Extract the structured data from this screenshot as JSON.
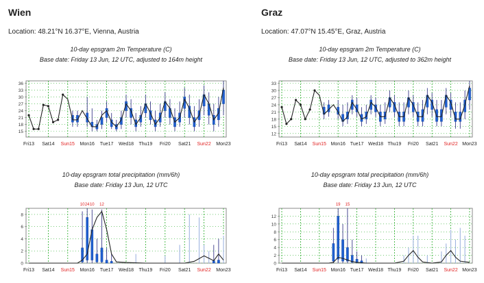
{
  "panels": [
    {
      "city": "Wien",
      "location": "Location: 48.21°N 16.37°E, Vienna, Austria",
      "temp_title": "10-day epsgram 2m Temperature (C)",
      "temp_subtitle": "Base date: Friday 13 Jun, 12 UTC, adjusted to 164m height",
      "precip_title": "10-day epsgram total precipitation (mm/6h)",
      "precip_subtitle": "Base date: Friday 13 Jun, 12 UTC"
    },
    {
      "city": "Graz",
      "location": "Location: 47.07°N 15.45°E, Graz, Austria",
      "temp_title": "10-day epsgram 2m Temperature (C)",
      "temp_subtitle": "Base date: Friday 13 Jun, 12 UTC, adjusted to 362m height",
      "precip_title": "10-day epsgram total precipitation (mm/6h)",
      "precip_subtitle": "Base date: Friday 13 Jun, 12 UTC"
    }
  ],
  "colors": {
    "axis": "#888888",
    "gridline": "#22aa22",
    "box": "#1f5fd0",
    "whisker": "#3a3a8a",
    "ens_line": "#222222",
    "weekend_label": "#e02020",
    "weekday_label": "#222222",
    "overflow_label": "#e02020"
  },
  "chart_data": [
    {
      "type": "boxplot-line",
      "title": "10-day epsgram 2m Temperature (C)",
      "location": "Wien",
      "x_ticks": [
        "Fri13",
        "Sat14",
        "Sun15",
        "Mon16",
        "Tue17",
        "Wed18",
        "Thu19",
        "Fri20",
        "Sat21",
        "Sun22",
        "Mon23"
      ],
      "weekend_ticks": [
        "Sun15",
        "Sun22"
      ],
      "x_unit": "days since Fri13 12 UTC",
      "y_ticks": [
        15,
        18,
        21,
        24,
        27,
        30,
        33,
        36
      ],
      "ylim": [
        12.5,
        37
      ],
      "grid": true,
      "line": {
        "x": [
          0,
          0.25,
          0.5,
          0.75,
          1,
          1.25,
          1.5,
          1.75,
          2,
          2.25,
          2.5,
          2.75,
          3,
          3.25,
          3.5,
          3.75,
          4,
          4.25,
          4.5,
          4.75,
          5,
          5.25,
          5.5,
          5.75,
          6,
          6.25,
          6.5,
          6.75,
          7,
          7.25,
          7.5,
          7.75,
          8,
          8.25,
          8.5,
          8.75,
          9,
          9.25,
          9.5,
          9.75,
          10
        ],
        "y": [
          22,
          16,
          16,
          26.5,
          26,
          19,
          20,
          31,
          29,
          20,
          20,
          24,
          20.5,
          17,
          17,
          22,
          24,
          19,
          17,
          20,
          27,
          24,
          18,
          21,
          27,
          23,
          18,
          21,
          28,
          25,
          19,
          21,
          29,
          25,
          19,
          22,
          31,
          27,
          20,
          23,
          34
        ]
      },
      "boxes": [
        {
          "x": 2.25,
          "min": 17,
          "q1": 19,
          "q3": 22,
          "max": 24
        },
        {
          "x": 2.5,
          "min": 17,
          "q1": 19,
          "q3": 22,
          "max": 24
        },
        {
          "x": 3,
          "min": 17,
          "q1": 19,
          "q3": 23,
          "max": 30
        },
        {
          "x": 3.25,
          "min": 15,
          "q1": 17,
          "q3": 19,
          "max": 25
        },
        {
          "x": 3.5,
          "min": 15,
          "q1": 16,
          "q3": 18,
          "max": 20
        },
        {
          "x": 3.75,
          "min": 16,
          "q1": 18,
          "q3": 21,
          "max": 24
        },
        {
          "x": 4,
          "min": 19,
          "q1": 21,
          "q3": 25,
          "max": 28
        },
        {
          "x": 4.25,
          "min": 16,
          "q1": 17,
          "q3": 20,
          "max": 23
        },
        {
          "x": 4.5,
          "min": 15,
          "q1": 16,
          "q3": 18,
          "max": 20
        },
        {
          "x": 4.75,
          "min": 16,
          "q1": 18,
          "q3": 21,
          "max": 24
        },
        {
          "x": 5,
          "min": 21,
          "q1": 24,
          "q3": 28,
          "max": 31
        },
        {
          "x": 5.25,
          "min": 18,
          "q1": 21,
          "q3": 25,
          "max": 29
        },
        {
          "x": 5.5,
          "min": 15,
          "q1": 17,
          "q3": 20,
          "max": 23
        },
        {
          "x": 5.75,
          "min": 17,
          "q1": 19,
          "q3": 22,
          "max": 26
        },
        {
          "x": 6,
          "min": 21,
          "q1": 23,
          "q3": 27,
          "max": 31
        },
        {
          "x": 6.25,
          "min": 18,
          "q1": 20,
          "q3": 24,
          "max": 28
        },
        {
          "x": 6.5,
          "min": 15,
          "q1": 17,
          "q3": 20,
          "max": 24
        },
        {
          "x": 6.75,
          "min": 17,
          "q1": 19,
          "q3": 23,
          "max": 27
        },
        {
          "x": 7,
          "min": 21,
          "q1": 24,
          "q3": 28,
          "max": 32
        },
        {
          "x": 7.25,
          "min": 18,
          "q1": 21,
          "q3": 25,
          "max": 29
        },
        {
          "x": 7.5,
          "min": 15,
          "q1": 17,
          "q3": 21,
          "max": 25
        },
        {
          "x": 7.75,
          "min": 17,
          "q1": 19,
          "q3": 23,
          "max": 28
        },
        {
          "x": 8,
          "min": 21,
          "q1": 25,
          "q3": 30,
          "max": 34
        },
        {
          "x": 8.25,
          "min": 18,
          "q1": 21,
          "q3": 26,
          "max": 31
        },
        {
          "x": 8.5,
          "min": 15,
          "q1": 17,
          "q3": 21,
          "max": 26
        },
        {
          "x": 8.75,
          "min": 17,
          "q1": 20,
          "q3": 24,
          "max": 29
        },
        {
          "x": 9,
          "min": 22,
          "q1": 26,
          "q3": 31,
          "max": 35
        },
        {
          "x": 9.25,
          "min": 18,
          "q1": 22,
          "q3": 27,
          "max": 32
        },
        {
          "x": 9.5,
          "min": 15,
          "q1": 18,
          "q3": 22,
          "max": 27
        },
        {
          "x": 9.75,
          "min": 17,
          "q1": 20,
          "q3": 25,
          "max": 30
        },
        {
          "x": 10,
          "min": 22,
          "q1": 27,
          "q3": 33,
          "max": 37
        }
      ]
    },
    {
      "type": "boxplot-line",
      "title": "10-day epsgram total precipitation (mm/6h)",
      "location": "Wien",
      "x_ticks": [
        "Fri13",
        "Sat14",
        "Sun15",
        "Mon16",
        "Tue17",
        "Wed18",
        "Thu19",
        "Fri20",
        "Sat21",
        "Sun22",
        "Mon23"
      ],
      "weekend_ticks": [
        "Sun15",
        "Sun22"
      ],
      "x_unit": "days since Fri13 12 UTC",
      "y_ticks": [
        0,
        2,
        4,
        6,
        8
      ],
      "ylim": [
        0,
        9
      ],
      "grid": true,
      "overflow_labels": [
        {
          "x": 2.75,
          "text": "10"
        },
        {
          "x": 3.0,
          "text": "24"
        },
        {
          "x": 3.25,
          "text": "10"
        },
        {
          "x": 3.75,
          "text": "12"
        }
      ],
      "line": {
        "x": [
          0,
          0.5,
          1,
          1.5,
          2,
          2.5,
          2.75,
          3,
          3.25,
          3.5,
          3.75,
          4,
          4.25,
          4.5,
          5,
          6,
          7,
          8,
          8.5,
          9,
          9.25,
          9.5,
          9.75,
          10
        ],
        "y": [
          0,
          0,
          0,
          0,
          0,
          0,
          0.5,
          1.5,
          5.5,
          7.5,
          8.5,
          5.5,
          1.5,
          0.2,
          0.1,
          0,
          0,
          0,
          0.3,
          1.2,
          0.8,
          0.4,
          1.5,
          0.5
        ]
      },
      "boxes": [
        {
          "x": 2.75,
          "min": 0,
          "q1": 0.2,
          "q3": 2.5,
          "max": 8.5
        },
        {
          "x": 3.0,
          "min": 0,
          "q1": 0.5,
          "q3": 7.5,
          "max": 9
        },
        {
          "x": 3.25,
          "min": 0,
          "q1": 0.5,
          "q3": 5.5,
          "max": 8.8
        },
        {
          "x": 3.5,
          "min": 0,
          "q1": 0.2,
          "q3": 1.5,
          "max": 4
        },
        {
          "x": 3.75,
          "min": 0,
          "q1": 0.2,
          "q3": 2.5,
          "max": 8.8
        },
        {
          "x": 4.0,
          "min": 0,
          "q1": 0,
          "q3": 0.5,
          "max": 2.5
        },
        {
          "x": 4.25,
          "min": 0,
          "q1": 0,
          "q3": 0.3,
          "max": 1.5
        },
        {
          "x": 9.5,
          "min": 0,
          "q1": 0,
          "q3": 0.4,
          "max": 3
        },
        {
          "x": 9.75,
          "min": 0,
          "q1": 0,
          "q3": 0.5,
          "max": 4
        }
      ],
      "faint_bars": [
        {
          "x": 5.5,
          "max": 1.5
        },
        {
          "x": 7.0,
          "max": 1.2
        },
        {
          "x": 7.75,
          "max": 3
        },
        {
          "x": 8.25,
          "max": 8
        },
        {
          "x": 8.75,
          "max": 7.5
        },
        {
          "x": 9.0,
          "max": 3
        },
        {
          "x": 9.25,
          "max": 2
        },
        {
          "x": 10.0,
          "max": 4.5
        }
      ]
    },
    {
      "type": "boxplot-line",
      "title": "10-day epsgram 2m Temperature (C)",
      "location": "Graz",
      "x_ticks": [
        "Fri13",
        "Sat14",
        "Sun15",
        "Mon16",
        "Tue17",
        "Wed18",
        "Thu19",
        "Fri20",
        "Sat21",
        "Sun22",
        "Mon23"
      ],
      "weekend_ticks": [
        "Sun15",
        "Sun22"
      ],
      "x_unit": "days since Fri13 12 UTC",
      "y_ticks": [
        12,
        15,
        18,
        21,
        24,
        27,
        30,
        33
      ],
      "ylim": [
        10.5,
        34
      ],
      "grid": true,
      "line": {
        "x": [
          0,
          0.25,
          0.5,
          0.75,
          1,
          1.25,
          1.5,
          1.75,
          2,
          2.25,
          2.5,
          2.75,
          3,
          3.25,
          3.5,
          3.75,
          4,
          4.25,
          4.5,
          4.75,
          5,
          5.25,
          5.5,
          5.75,
          6,
          6.25,
          6.5,
          6.75,
          7,
          7.25,
          7.5,
          7.75,
          8,
          8.25,
          8.5,
          8.75,
          9,
          9.25,
          9.5,
          9.75,
          10
        ],
        "y": [
          23,
          16,
          18,
          26,
          24,
          18,
          22,
          30,
          28,
          20,
          22,
          24,
          21,
          17,
          19,
          25,
          22,
          18,
          19,
          25,
          23,
          19,
          19,
          27,
          24,
          19,
          19,
          27,
          24,
          19,
          19,
          28,
          25,
          19,
          19,
          28,
          25,
          18,
          18,
          24,
          32
        ]
      },
      "boxes": [
        {
          "x": 2.25,
          "min": 18,
          "q1": 20,
          "q3": 23,
          "max": 25
        },
        {
          "x": 2.5,
          "min": 19,
          "q1": 21,
          "q3": 24,
          "max": 26
        },
        {
          "x": 3,
          "min": 18,
          "q1": 20,
          "q3": 23,
          "max": 26
        },
        {
          "x": 3.25,
          "min": 15,
          "q1": 17,
          "q3": 20,
          "max": 24
        },
        {
          "x": 3.5,
          "min": 16,
          "q1": 18,
          "q3": 21,
          "max": 25
        },
        {
          "x": 3.75,
          "min": 20,
          "q1": 22,
          "q3": 26,
          "max": 28
        },
        {
          "x": 4,
          "min": 19,
          "q1": 21,
          "q3": 24,
          "max": 27
        },
        {
          "x": 4.25,
          "min": 15,
          "q1": 17,
          "q3": 20,
          "max": 23
        },
        {
          "x": 4.5,
          "min": 16,
          "q1": 18,
          "q3": 21,
          "max": 24
        },
        {
          "x": 4.75,
          "min": 20,
          "q1": 22,
          "q3": 26,
          "max": 28
        },
        {
          "x": 5,
          "min": 19,
          "q1": 21,
          "q3": 24,
          "max": 27
        },
        {
          "x": 5.25,
          "min": 15,
          "q1": 17,
          "q3": 21,
          "max": 24
        },
        {
          "x": 5.5,
          "min": 16,
          "q1": 18,
          "q3": 21,
          "max": 25
        },
        {
          "x": 5.75,
          "min": 21,
          "q1": 23,
          "q3": 27,
          "max": 30
        },
        {
          "x": 6,
          "min": 19,
          "q1": 21,
          "q3": 25,
          "max": 28
        },
        {
          "x": 6.25,
          "min": 15,
          "q1": 17,
          "q3": 21,
          "max": 25
        },
        {
          "x": 6.5,
          "min": 15,
          "q1": 17,
          "q3": 21,
          "max": 25
        },
        {
          "x": 6.75,
          "min": 20,
          "q1": 23,
          "q3": 27,
          "max": 30
        },
        {
          "x": 7,
          "min": 19,
          "q1": 21,
          "q3": 25,
          "max": 28
        },
        {
          "x": 7.25,
          "min": 15,
          "q1": 17,
          "q3": 21,
          "max": 25
        },
        {
          "x": 7.5,
          "min": 15,
          "q1": 17,
          "q3": 22,
          "max": 26
        },
        {
          "x": 7.75,
          "min": 20,
          "q1": 23,
          "q3": 28,
          "max": 31
        },
        {
          "x": 8,
          "min": 19,
          "q1": 22,
          "q3": 26,
          "max": 29
        },
        {
          "x": 8.25,
          "min": 15,
          "q1": 17,
          "q3": 22,
          "max": 26
        },
        {
          "x": 8.5,
          "min": 15,
          "q1": 17,
          "q3": 22,
          "max": 26
        },
        {
          "x": 8.75,
          "min": 20,
          "q1": 23,
          "q3": 28,
          "max": 31
        },
        {
          "x": 9,
          "min": 19,
          "q1": 22,
          "q3": 26,
          "max": 29
        },
        {
          "x": 9.25,
          "min": 14,
          "q1": 17,
          "q3": 21,
          "max": 25
        },
        {
          "x": 9.5,
          "min": 14,
          "q1": 17,
          "q3": 21,
          "max": 25
        },
        {
          "x": 9.75,
          "min": 18,
          "q1": 21,
          "q3": 26,
          "max": 30
        },
        {
          "x": 10,
          "min": 22,
          "q1": 26,
          "q3": 31,
          "max": 34
        }
      ]
    },
    {
      "type": "boxplot-line",
      "title": "10-day epsgram total precipitation (mm/6h)",
      "location": "Graz",
      "x_ticks": [
        "Fri13",
        "Sat14",
        "Sun15",
        "Mon16",
        "Tue17",
        "Wed18",
        "Thu19",
        "Fri20",
        "Sat21",
        "Sun22",
        "Mon23"
      ],
      "weekend_ticks": [
        "Sun15",
        "Sun22"
      ],
      "x_unit": "days since Fri13 12 UTC",
      "y_ticks": [
        0,
        2,
        4,
        6,
        8,
        10,
        12
      ],
      "ylim": [
        0,
        14
      ],
      "grid": true,
      "overflow_labels": [
        {
          "x": 3.0,
          "text": "19"
        },
        {
          "x": 3.5,
          "text": "15"
        }
      ],
      "line": {
        "x": [
          0,
          1,
          2,
          2.5,
          2.75,
          3,
          3.25,
          3.5,
          3.75,
          4,
          4.5,
          5,
          5.5,
          6,
          6.5,
          6.75,
          7,
          7.25,
          7.5,
          8,
          8.5,
          8.75,
          9,
          9.25,
          9.5,
          10
        ],
        "y": [
          0,
          0,
          0,
          0,
          0.2,
          1.5,
          1.2,
          0.8,
          0.4,
          0.2,
          0,
          0,
          0,
          0,
          0.5,
          2,
          3.2,
          1.5,
          0.3,
          0,
          0.3,
          2,
          3.2,
          1.5,
          0.5,
          0.2
        ]
      },
      "boxes": [
        {
          "x": 2.75,
          "min": 0,
          "q1": 0.5,
          "q3": 5,
          "max": 9
        },
        {
          "x": 3.0,
          "min": 0,
          "q1": 1,
          "q3": 12,
          "max": 14
        },
        {
          "x": 3.25,
          "min": 0,
          "q1": 0.5,
          "q3": 6,
          "max": 10
        },
        {
          "x": 3.5,
          "min": 0,
          "q1": 0.5,
          "q3": 4,
          "max": 14
        },
        {
          "x": 3.75,
          "min": 0,
          "q1": 0.2,
          "q3": 2,
          "max": 6
        },
        {
          "x": 4.0,
          "min": 0,
          "q1": 0.1,
          "q3": 1,
          "max": 3
        },
        {
          "x": 4.25,
          "min": 0,
          "q1": 0,
          "q3": 0.6,
          "max": 2
        }
      ],
      "faint_bars": [
        {
          "x": 4.5,
          "max": 1.2
        },
        {
          "x": 6.5,
          "max": 2
        },
        {
          "x": 6.75,
          "max": 4
        },
        {
          "x": 7.0,
          "max": 7
        },
        {
          "x": 7.25,
          "max": 7
        },
        {
          "x": 7.75,
          "max": 2
        },
        {
          "x": 8.5,
          "max": 3
        },
        {
          "x": 8.75,
          "max": 5
        },
        {
          "x": 9.0,
          "max": 8.5
        },
        {
          "x": 9.25,
          "max": 6
        },
        {
          "x": 9.5,
          "max": 9
        },
        {
          "x": 9.75,
          "max": 7
        }
      ]
    }
  ]
}
